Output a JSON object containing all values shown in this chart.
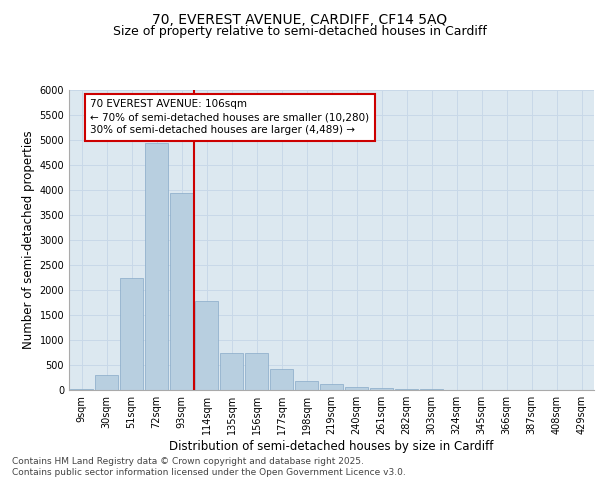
{
  "title_line1": "70, EVEREST AVENUE, CARDIFF, CF14 5AQ",
  "title_line2": "Size of property relative to semi-detached houses in Cardiff",
  "xlabel": "Distribution of semi-detached houses by size in Cardiff",
  "ylabel": "Number of semi-detached properties",
  "categories": [
    "9sqm",
    "30sqm",
    "51sqm",
    "72sqm",
    "93sqm",
    "114sqm",
    "135sqm",
    "156sqm",
    "177sqm",
    "198sqm",
    "219sqm",
    "240sqm",
    "261sqm",
    "282sqm",
    "303sqm",
    "324sqm",
    "345sqm",
    "366sqm",
    "387sqm",
    "408sqm",
    "429sqm"
  ],
  "values": [
    30,
    310,
    2250,
    4950,
    3950,
    1780,
    750,
    750,
    430,
    175,
    120,
    70,
    45,
    30,
    20,
    10,
    5,
    5,
    2,
    2,
    1
  ],
  "bar_color": "#b8cfe0",
  "bar_edgecolor": "#88aac8",
  "vline_color": "#cc0000",
  "vline_pos": 4.5,
  "annotation_text": "70 EVEREST AVENUE: 106sqm\n← 70% of semi-detached houses are smaller (10,280)\n30% of semi-detached houses are larger (4,489) →",
  "annotation_box_facecolor": "#ffffff",
  "annotation_box_edgecolor": "#cc0000",
  "ylim": [
    0,
    6000
  ],
  "yticks": [
    0,
    500,
    1000,
    1500,
    2000,
    2500,
    3000,
    3500,
    4000,
    4500,
    5000,
    5500,
    6000
  ],
  "grid_color": "#c8d8e8",
  "background_color": "#dce8f0",
  "footer_text": "Contains HM Land Registry data © Crown copyright and database right 2025.\nContains public sector information licensed under the Open Government Licence v3.0.",
  "title_fontsize": 10,
  "subtitle_fontsize": 9,
  "axis_label_fontsize": 8.5,
  "tick_fontsize": 7,
  "footer_fontsize": 6.5,
  "annotation_fontsize": 7.5
}
